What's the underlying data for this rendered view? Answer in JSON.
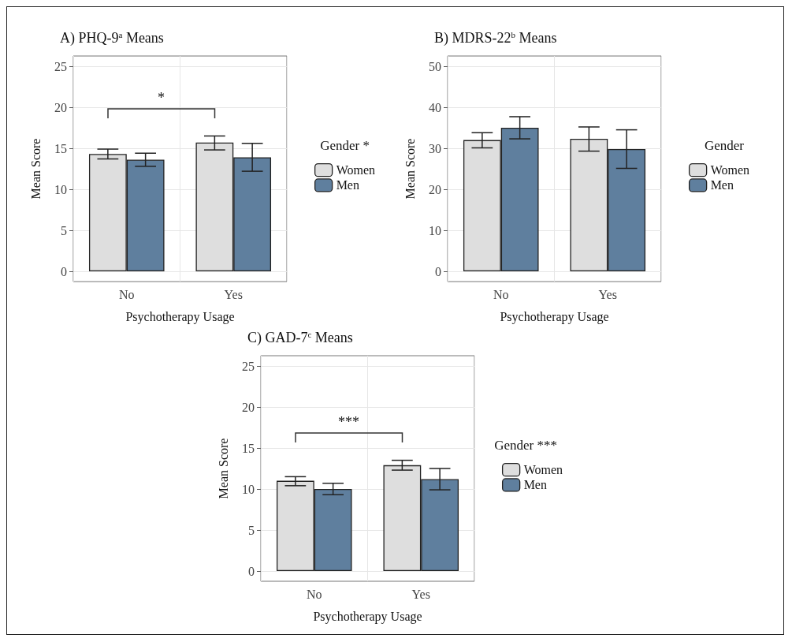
{
  "chart_data": [
    {
      "type": "bar",
      "title": "A) PHQ-9$^{a}$ Means",
      "xlabel": "Psychotherapy Usage",
      "ylabel": "Mean Score",
      "legend_title": "Gender *",
      "categories": [
        "No",
        "Yes"
      ],
      "series": [
        {
          "name": "Women",
          "color": "#dedede",
          "values": [
            14.3,
            15.7
          ],
          "errors": [
            [
              13.7,
              14.9
            ],
            [
              14.8,
              16.5
            ]
          ]
        },
        {
          "name": "Men",
          "color": "#5f7f9e",
          "values": [
            13.6,
            13.9
          ],
          "errors": [
            [
              12.8,
              14.4
            ],
            [
              12.2,
              15.6
            ]
          ]
        }
      ],
      "ylim": [
        -1.25,
        26.25
      ],
      "yticks": [
        0,
        5,
        10,
        15,
        20,
        25
      ],
      "grid": true,
      "legend": "right",
      "annotations": [
        "*"
      ]
    },
    {
      "type": "bar",
      "title": "B) MDRS-22$^{b}$ Means",
      "xlabel": "Psychotherapy Usage",
      "ylabel": "Mean Score",
      "legend_title": "Gender",
      "categories": [
        "No",
        "Yes"
      ],
      "series": [
        {
          "name": "Women",
          "color": "#dedede",
          "values": [
            32,
            32.3
          ],
          "errors": [
            [
              30.1,
              33.8
            ],
            [
              29.3,
              35.2
            ]
          ]
        },
        {
          "name": "Men",
          "color": "#5f7f9e",
          "values": [
            35,
            29.8
          ],
          "errors": [
            [
              32.3,
              37.7
            ],
            [
              25.1,
              34.5
            ]
          ]
        }
      ],
      "ylim": [
        -2.5,
        52.5
      ],
      "yticks": [
        0,
        10,
        20,
        30,
        40,
        50
      ],
      "grid": true,
      "legend": "right"
    },
    {
      "type": "bar",
      "title": "C) GAD-7$^{c}$ Means",
      "xlabel": "Psychotherapy Usage",
      "ylabel": "Mean Score",
      "legend_title": "Gender ***",
      "categories": [
        "No",
        "Yes"
      ],
      "series": [
        {
          "name": "Women",
          "color": "#dedede",
          "values": [
            11,
            12.9
          ],
          "errors": [
            [
              10.4,
              11.5
            ],
            [
              12.3,
              13.5
            ]
          ]
        },
        {
          "name": "Men",
          "color": "#5f7f9e",
          "values": [
            10,
            11.2
          ],
          "errors": [
            [
              9.3,
              10.7
            ],
            [
              9.9,
              12.5
            ]
          ]
        }
      ],
      "ylim": [
        -1.25,
        26.25
      ],
      "yticks": [
        0,
        5,
        10,
        15,
        20,
        25
      ],
      "grid": true,
      "legend": "right",
      "annotations": [
        "***"
      ]
    }
  ]
}
